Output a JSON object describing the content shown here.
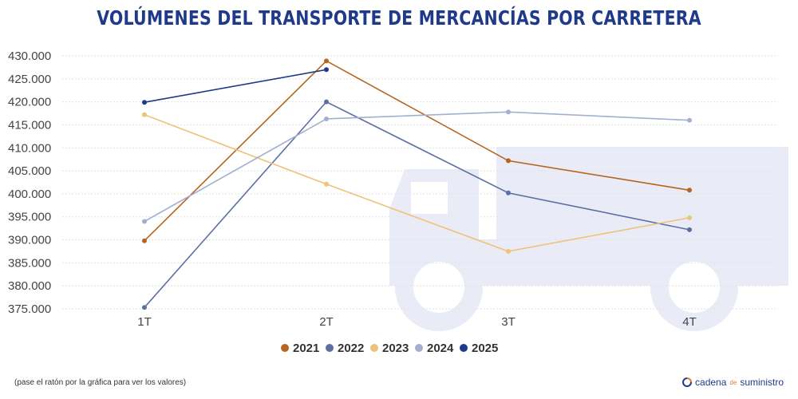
{
  "footnote": "(pase el ratón por la gráfica para ver los valores)",
  "brand": {
    "part1": "cadena",
    "part2": "de",
    "part3": "suministro"
  },
  "chart_data": {
    "type": "line",
    "title": "VOLÚMENES DEL TRANSPORTE DE MERCANCÍAS POR CARRETERA",
    "categories": [
      "1T",
      "2T",
      "3T",
      "4T"
    ],
    "ylim": [
      375000,
      430000
    ],
    "yticks": [
      375000,
      380000,
      385000,
      390000,
      395000,
      400000,
      405000,
      410000,
      415000,
      420000,
      425000,
      430000
    ],
    "ytick_labels": [
      "375.000",
      "380.000",
      "385.000",
      "390.000",
      "395.000",
      "400.000",
      "405.000",
      "410.000",
      "415.000",
      "420.000",
      "425.000",
      "430.000"
    ],
    "grid": true,
    "legend_position": "bottom-center",
    "series": [
      {
        "name": "2021",
        "color": "#b5651d",
        "values": [
          389800,
          428900,
          407200,
          400800
        ]
      },
      {
        "name": "2022",
        "color": "#5c6fa3",
        "values": [
          375300,
          420000,
          400200,
          392200
        ]
      },
      {
        "name": "2023",
        "color": "#efc27b",
        "values": [
          417200,
          402100,
          387500,
          394800
        ]
      },
      {
        "name": "2024",
        "color": "#a2b0cf",
        "values": [
          394000,
          416300,
          417800,
          416000
        ]
      },
      {
        "name": "2025",
        "color": "#1f3a8a",
        "values": [
          419900,
          427000,
          null,
          null
        ]
      }
    ]
  }
}
